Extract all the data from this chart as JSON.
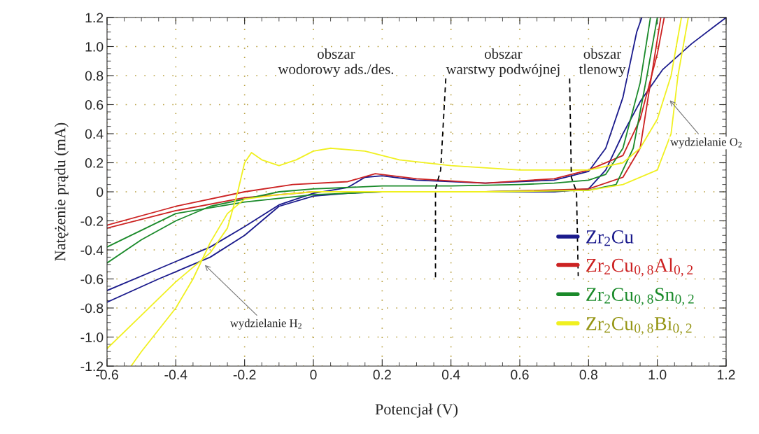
{
  "chart_data": {
    "type": "line",
    "xlabel": "Potencjał (V)",
    "ylabel": "Natężenie prądu (mA)",
    "xlim": [
      -0.6,
      1.2
    ],
    "xticks": [
      -0.6,
      -0.4,
      -0.2,
      0,
      0.2,
      0.4,
      0.6,
      0.8,
      {
        "value": 1,
        "label": "1.0"
      },
      1.2
    ],
    "ylim": [
      -1.2,
      1.2
    ],
    "yticks": [
      -1.2,
      {
        "value": -1,
        "label": "-1.0"
      },
      -0.8,
      -0.6,
      -0.4,
      -0.2,
      0,
      0.2,
      0.4,
      0.6,
      0.8,
      {
        "value": 1,
        "label": "1.0"
      },
      1.2
    ],
    "grid": true,
    "legend": "bottom right",
    "line_style": "solid",
    "marker": "none",
    "series": [
      {
        "name": "Zr$_{2}$Cu",
        "color": "#1a1a8c",
        "x": [
          -0.6,
          -0.45,
          -0.3,
          -0.2,
          -0.1,
          0,
          0.1,
          0.15,
          0.2,
          0.3,
          0.5,
          0.7,
          0.8,
          0.85,
          0.9,
          0.94,
          0.955
        ],
        "values": [
          -0.68,
          -0.53,
          -0.38,
          -0.24,
          -0.09,
          -0.01,
          0.03,
          0.1,
          0.11,
          0.08,
          0.06,
          0.08,
          0.14,
          0.3,
          0.65,
          1.1,
          1.2
        ]
      },
      {
        "color": "#1a1a8c",
        "x": [
          1.2,
          1.1,
          1.015,
          0.95,
          0.9,
          0.85,
          0.8,
          0.7,
          0.5,
          0.3,
          0.2,
          0.1,
          0,
          -0.1,
          -0.2,
          -0.3,
          -0.45,
          -0.6
        ],
        "values": [
          1.2,
          1.02,
          0.84,
          0.62,
          0.4,
          0.15,
          0.02,
          0.0,
          0.0,
          0.0,
          0.0,
          -0.01,
          -0.03,
          -0.1,
          -0.3,
          -0.45,
          -0.6,
          -0.76
        ]
      },
      {
        "name": "Zr$_{2}$Cu$_{0,8}$Al$_{0,2}$",
        "color": "#cc2222",
        "x": [
          -0.6,
          -0.4,
          -0.2,
          -0.06,
          0.1,
          0.18,
          0.3,
          0.5,
          0.7,
          0.8,
          0.9,
          0.95,
          1.0,
          1.02
        ],
        "values": [
          -0.23,
          -0.1,
          0.0,
          0.05,
          0.07,
          0.125,
          0.09,
          0.06,
          0.09,
          0.15,
          0.25,
          0.5,
          0.95,
          1.2
        ]
      },
      {
        "color": "#cc2222",
        "x": [
          1.01,
          0.95,
          0.9,
          0.8,
          0.5,
          0.2,
          0,
          -0.2,
          -0.4,
          -0.6
        ],
        "values": [
          1.2,
          0.3,
          0.1,
          0.02,
          0.0,
          0.0,
          0.0,
          -0.04,
          -0.13,
          -0.25
        ]
      },
      {
        "name": "Zr$_{2}$Cu$_{0,8}$Sn$_{0,2}$",
        "color": "#1a8a2a",
        "x": [
          -0.6,
          -0.5,
          -0.4,
          -0.3,
          -0.2,
          -0.1,
          0,
          0.2,
          0.4,
          0.6,
          0.7,
          0.8,
          0.85,
          0.9,
          0.95,
          0.98
        ],
        "values": [
          -0.49,
          -0.33,
          -0.2,
          -0.1,
          -0.05,
          0.0,
          0.02,
          0.04,
          0.04,
          0.05,
          0.06,
          0.08,
          0.12,
          0.3,
          0.75,
          1.2
        ]
      },
      {
        "color": "#1a8a2a",
        "x": [
          1.0,
          0.97,
          0.93,
          0.88,
          0.8,
          0.5,
          0.2,
          0,
          -0.2,
          -0.4,
          -0.6
        ],
        "values": [
          1.2,
          0.8,
          0.3,
          0.05,
          0.01,
          0.0,
          0.0,
          -0.02,
          -0.07,
          -0.15,
          -0.38
        ]
      },
      {
        "name": "Zr$_{2}$Cu$_{0,8}$Bi$_{0,2}$",
        "color": "#f0f020",
        "x": [
          -0.6,
          -0.5,
          -0.4,
          -0.3,
          -0.25,
          -0.22,
          -0.2,
          -0.18,
          -0.15,
          -0.1,
          -0.05,
          0,
          0.05,
          0.15,
          0.25,
          0.4,
          0.6,
          0.8,
          0.9,
          0.95,
          1.0,
          1.04,
          1.07
        ],
        "values": [
          -1.08,
          -0.85,
          -0.62,
          -0.42,
          -0.25,
          0.0,
          0.2,
          0.27,
          0.22,
          0.18,
          0.22,
          0.28,
          0.3,
          0.28,
          0.22,
          0.18,
          0.15,
          0.15,
          0.2,
          0.3,
          0.5,
          0.8,
          1.2
        ]
      },
      {
        "color": "#f0f020",
        "x": [
          1.09,
          1.06,
          1.04,
          1.0,
          0.9,
          0.8,
          0.5,
          0.2,
          0,
          -0.1,
          -0.2,
          -0.25,
          -0.3,
          -0.35,
          -0.4,
          -0.5,
          -0.53
        ],
        "values": [
          1.2,
          0.8,
          0.4,
          0.15,
          0.05,
          0.01,
          0.0,
          0.0,
          0.0,
          -0.02,
          -0.05,
          -0.15,
          -0.35,
          -0.6,
          -0.8,
          -1.1,
          -1.2
        ]
      },
      {
        "color": "#000000",
        "line_style": "dashed",
        "x": [
          0.385,
          0.37,
          0.355,
          0.355
        ],
        "values": [
          0.78,
          0.15,
          0.02,
          -0.6
        ]
      },
      {
        "color": "#000000",
        "line_style": "dashed",
        "x": [
          0.745,
          0.75,
          0.765,
          0.77
        ],
        "values": [
          0.78,
          0.1,
          0.0,
          -0.58
        ]
      }
    ],
    "annotations": [
      "obszar\nwodorowy ads./des.",
      "obszar\nwarstwy podwójnej",
      "obszar\ntlenowy",
      "wydzielanie H$_{2}$",
      "wydzielanie O$_{2}$"
    ]
  }
}
